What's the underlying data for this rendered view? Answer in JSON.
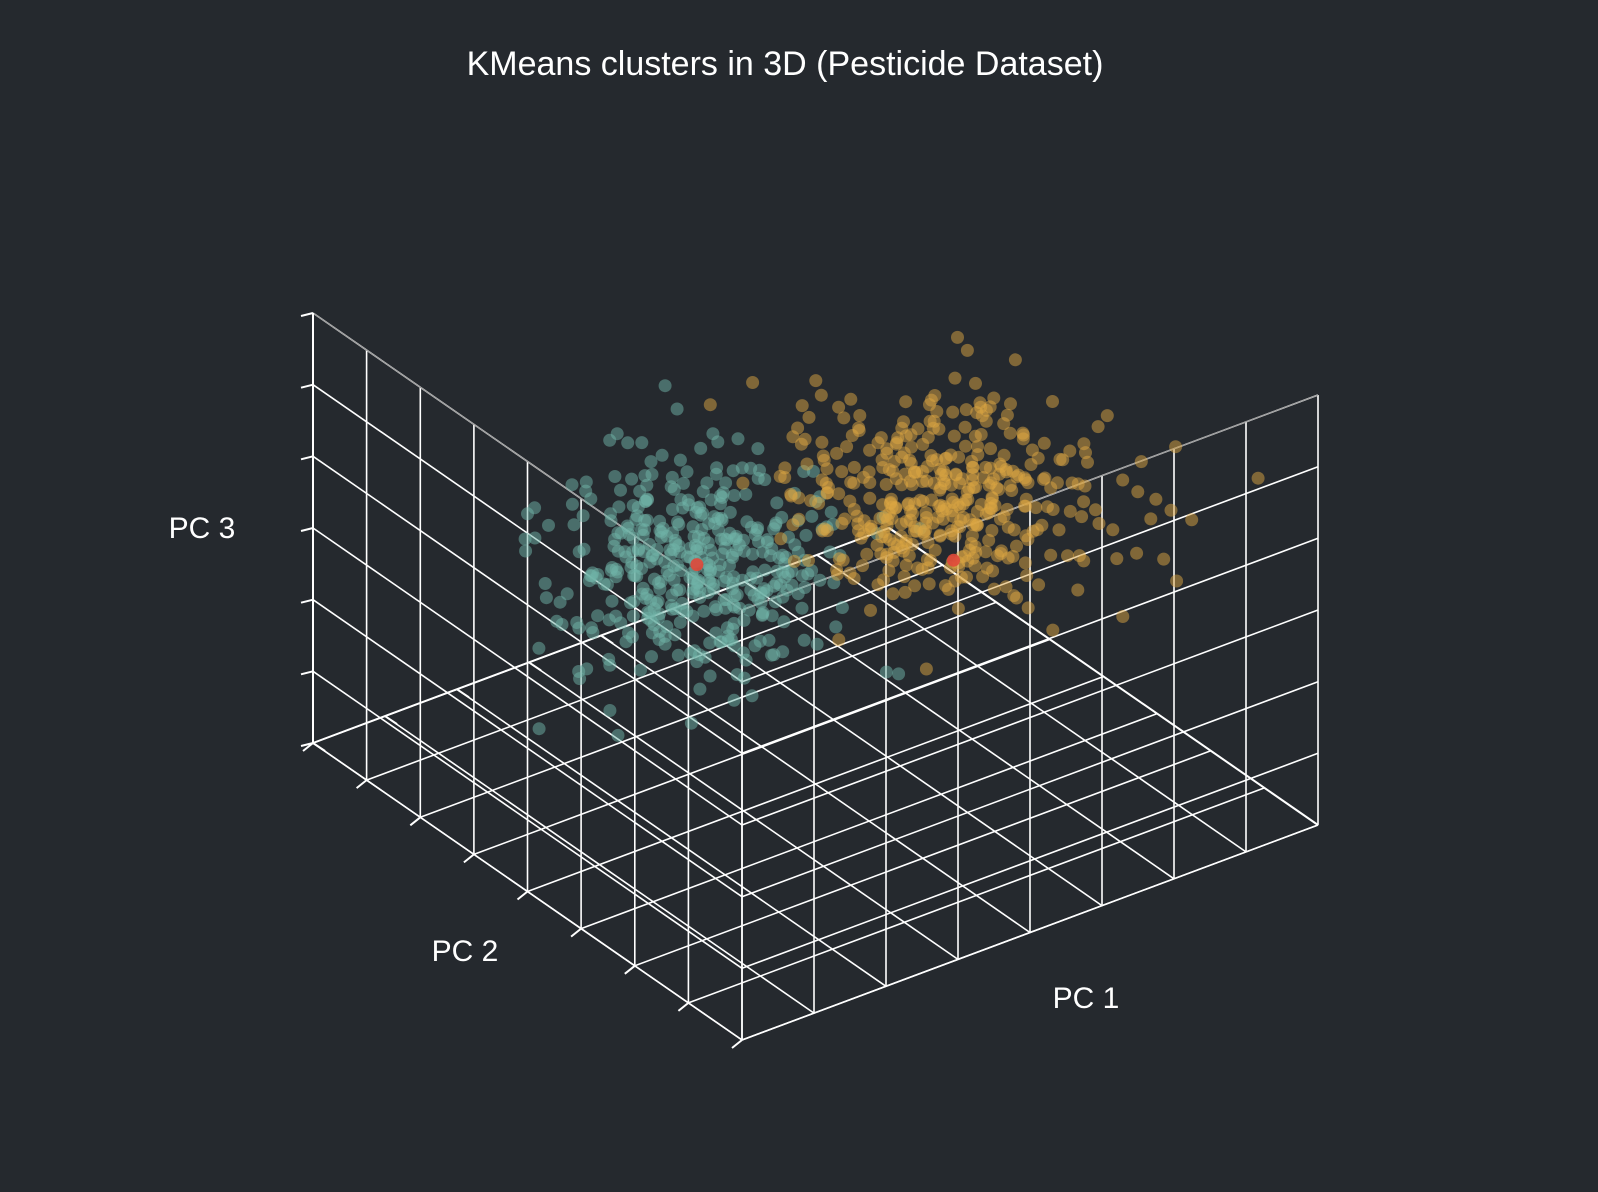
{
  "colors": {
    "background": "#25292e",
    "grid": "#ffffff",
    "pane_edge": "#9a9a9a",
    "text": "#ffffff"
  },
  "chart_data": {
    "type": "scatter",
    "subtype": "3d",
    "title": "KMeans clusters in 3D (Pesticide Dataset)",
    "xlabel": "PC 1",
    "ylabel": "PC 2",
    "zlabel": "PC 3",
    "xlim": [
      -4,
      4
    ],
    "ylim": [
      -4,
      4
    ],
    "zlim": [
      -3,
      3
    ],
    "grid": true,
    "tick_labels_visible": false,
    "legend": "none",
    "series": [
      {
        "color": "#6fb3a7",
        "marker_opacity": 0.5,
        "n_points": 420,
        "center": [
          -1.2,
          -0.6,
          0.2
        ],
        "spread": [
          0.75,
          0.85,
          0.6
        ]
      },
      {
        "color": "#dba641",
        "marker_opacity": 0.5,
        "n_points": 420,
        "center": [
          1.6,
          0.4,
          0.6
        ],
        "spread": [
          0.9,
          0.9,
          0.5
        ]
      },
      {
        "color": "#e0483a",
        "marker_opacity": 0.9,
        "points": [
          [
            -1.2,
            -0.6,
            0.2
          ],
          [
            0.8,
            1.5,
            0.6
          ]
        ]
      }
    ]
  }
}
